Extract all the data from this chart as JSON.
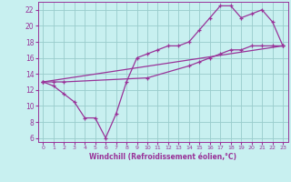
{
  "xlabel": "Windchill (Refroidissement éolien,°C)",
  "bg_color": "#c8f0f0",
  "line_color": "#993399",
  "grid_color": "#99cccc",
  "xlim": [
    -0.5,
    23.5
  ],
  "ylim": [
    5.5,
    23.0
  ],
  "xticks": [
    0,
    1,
    2,
    3,
    4,
    5,
    6,
    7,
    8,
    9,
    10,
    11,
    12,
    13,
    14,
    15,
    16,
    17,
    18,
    19,
    20,
    21,
    22,
    23
  ],
  "yticks": [
    6,
    8,
    10,
    12,
    14,
    16,
    18,
    20,
    22
  ],
  "line1_x": [
    0,
    1,
    2,
    3,
    4,
    5,
    6,
    7,
    8,
    9,
    10,
    11,
    12,
    13,
    14,
    15,
    16,
    17,
    18,
    19,
    20,
    21,
    22,
    23
  ],
  "line1_y": [
    13.0,
    12.5,
    11.5,
    10.5,
    8.5,
    8.5,
    6.0,
    9.0,
    13.0,
    16.0,
    16.5,
    17.0,
    17.5,
    17.5,
    18.0,
    19.5,
    21.0,
    22.5,
    22.5,
    21.0,
    21.5,
    22.0,
    20.5,
    17.5
  ],
  "line2_x": [
    0,
    23
  ],
  "line2_y": [
    13.0,
    17.5
  ],
  "line3_x": [
    0,
    1,
    2,
    10,
    14,
    15,
    16,
    17,
    18,
    19,
    20,
    21,
    22,
    23
  ],
  "line3_y": [
    13.0,
    13.0,
    13.0,
    13.5,
    15.0,
    15.5,
    16.0,
    16.5,
    17.0,
    17.0,
    17.5,
    17.5,
    17.5,
    17.5
  ]
}
